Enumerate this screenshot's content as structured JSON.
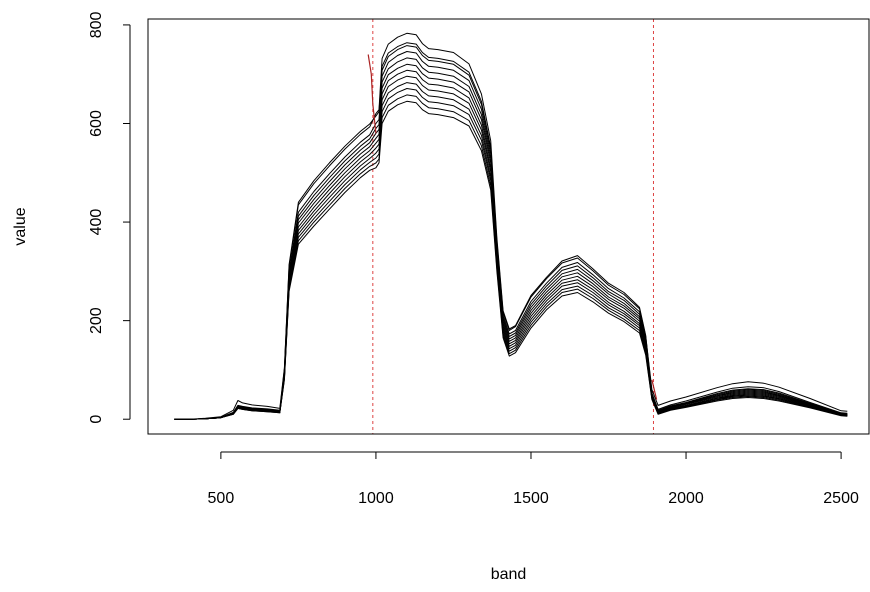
{
  "chart_data": {
    "type": "line",
    "title": "",
    "xlabel": "band",
    "ylabel": "value",
    "xlim": [
      265,
      2590
    ],
    "ylim": [
      -30,
      812
    ],
    "xticks": [
      500,
      1000,
      1500,
      2000,
      2500
    ],
    "yticks": [
      0,
      200,
      400,
      600,
      800
    ],
    "xtick_labels": [
      "500",
      "1000",
      "1500",
      "2000",
      "2500"
    ],
    "ytick_labels": [
      "0",
      "200",
      "400",
      "600",
      "800"
    ],
    "grid": false,
    "legend": "none",
    "colors": {
      "series": "#000000",
      "reference": "#dd4444",
      "highlight": "#aa2222"
    },
    "reference_lines_x": [
      990,
      1895
    ],
    "x": [
      350,
      400,
      450,
      500,
      540,
      555,
      570,
      600,
      650,
      690,
      705,
      720,
      750,
      800,
      850,
      900,
      950,
      980,
      1000,
      1010,
      1020,
      1040,
      1070,
      1100,
      1130,
      1150,
      1170,
      1200,
      1250,
      1300,
      1340,
      1370,
      1390,
      1410,
      1430,
      1450,
      1500,
      1550,
      1600,
      1650,
      1700,
      1750,
      1800,
      1850,
      1870,
      1890,
      1910,
      1950,
      2000,
      2100,
      2150,
      2200,
      2250,
      2300,
      2400,
      2500,
      2520
    ],
    "series": [
      {
        "values": [
          0,
          0,
          1,
          3,
          10,
          22,
          20,
          17,
          15,
          13,
          80,
          260,
          355,
          392,
          426,
          460,
          490,
          505,
          510,
          520,
          600,
          625,
          638,
          645,
          642,
          628,
          620,
          618,
          612,
          595,
          545,
          465,
          300,
          165,
          128,
          135,
          185,
          222,
          250,
          257,
          238,
          215,
          198,
          175,
          130,
          40,
          10,
          18,
          24,
          37,
          42,
          44,
          42,
          37,
          23,
          7,
          6
        ]
      },
      {
        "values": [
          0,
          0,
          1,
          3,
          10,
          22,
          20,
          17,
          15,
          13,
          82,
          264,
          362,
          400,
          434,
          468,
          498,
          513,
          520,
          528,
          612,
          637,
          650,
          658,
          655,
          641,
          632,
          630,
          624,
          606,
          555,
          474,
          306,
          170,
          133,
          140,
          191,
          228,
          257,
          264,
          245,
          221,
          203,
          180,
          134,
          42,
          11,
          19,
          25,
          39,
          44,
          46,
          44,
          39,
          24,
          8,
          7
        ]
      },
      {
        "values": [
          0,
          0,
          1,
          3,
          11,
          23,
          21,
          18,
          16,
          14,
          84,
          268,
          369,
          407,
          442,
          476,
          506,
          521,
          530,
          538,
          624,
          650,
          663,
          671,
          668,
          653,
          644,
          642,
          636,
          618,
          566,
          484,
          312,
          175,
          138,
          145,
          197,
          234,
          263,
          270,
          251,
          226,
          209,
          185,
          137,
          43,
          12,
          20,
          26,
          40,
          46,
          48,
          46,
          41,
          25,
          8,
          7
        ]
      },
      {
        "values": [
          0,
          0,
          1,
          3,
          11,
          23,
          21,
          18,
          16,
          14,
          86,
          272,
          376,
          415,
          450,
          484,
          514,
          529,
          540,
          548,
          636,
          662,
          675,
          683,
          680,
          665,
          656,
          654,
          648,
          629,
          576,
          492,
          318,
          180,
          143,
          150,
          203,
          240,
          270,
          277,
          257,
          232,
          214,
          190,
          141,
          44,
          12,
          21,
          27,
          42,
          47,
          50,
          48,
          42,
          26,
          9,
          8
        ]
      },
      {
        "values": [
          0,
          0,
          1,
          3,
          11,
          24,
          22,
          19,
          17,
          14,
          88,
          276,
          383,
          422,
          458,
          492,
          522,
          537,
          550,
          558,
          648,
          675,
          688,
          696,
          693,
          677,
          668,
          666,
          660,
          641,
          587,
          502,
          324,
          185,
          148,
          155,
          209,
          246,
          276,
          283,
          263,
          237,
          219,
          194,
          144,
          45,
          13,
          22,
          28,
          43,
          49,
          52,
          50,
          44,
          27,
          9,
          8
        ]
      },
      {
        "values": [
          0,
          0,
          1,
          3,
          12,
          24,
          22,
          19,
          17,
          15,
          90,
          280,
          390,
          430,
          466,
          500,
          530,
          545,
          560,
          568,
          660,
          687,
          700,
          708,
          705,
          689,
          680,
          678,
          672,
          652,
          597,
          510,
          330,
          190,
          153,
          160,
          215,
          252,
          282,
          290,
          269,
          243,
          225,
          199,
          148,
          46,
          14,
          23,
          30,
          45,
          51,
          54,
          52,
          46,
          28,
          10,
          9
        ]
      },
      {
        "values": [
          0,
          0,
          1,
          3,
          12,
          25,
          23,
          20,
          18,
          15,
          92,
          285,
          398,
          438,
          474,
          508,
          538,
          553,
          570,
          578,
          672,
          699,
          712,
          720,
          717,
          701,
          692,
          690,
          684,
          664,
          608,
          520,
          337,
          195,
          158,
          165,
          221,
          258,
          289,
          297,
          275,
          248,
          230,
          204,
          152,
          48,
          15,
          24,
          31,
          47,
          53,
          56,
          54,
          48,
          29,
          10,
          9
        ]
      },
      {
        "values": [
          0,
          0,
          1,
          3,
          12,
          25,
          23,
          20,
          18,
          16,
          94,
          290,
          405,
          446,
          482,
          516,
          546,
          561,
          580,
          588,
          684,
          711,
          725,
          733,
          730,
          713,
          704,
          702,
          696,
          675,
          618,
          529,
          343,
          200,
          163,
          170,
          227,
          264,
          295,
          304,
          281,
          254,
          235,
          208,
          155,
          49,
          16,
          25,
          32,
          48,
          55,
          58,
          56,
          49,
          30,
          11,
          10
        ]
      },
      {
        "values": [
          0,
          0,
          1,
          3,
          13,
          26,
          24,
          21,
          19,
          16,
          96,
          295,
          412,
          454,
          490,
          524,
          554,
          569,
          590,
          598,
          696,
          724,
          738,
          746,
          743,
          726,
          716,
          714,
          708,
          687,
          629,
          538,
          349,
          205,
          168,
          175,
          233,
          270,
          302,
          311,
          287,
          259,
          241,
          213,
          159,
          50,
          17,
          26,
          33,
          50,
          57,
          60,
          58,
          51,
          31,
          11,
          10
        ]
      },
      {
        "values": [
          0,
          0,
          1,
          4,
          13,
          27,
          25,
          22,
          20,
          17,
          98,
          300,
          420,
          462,
          498,
          532,
          562,
          577,
          600,
          608,
          708,
          736,
          750,
          758,
          755,
          738,
          728,
          726,
          720,
          698,
          639,
          547,
          355,
          210,
          173,
          180,
          239,
          276,
          308,
          318,
          293,
          265,
          246,
          218,
          163,
          51,
          18,
          27,
          34,
          52,
          59,
          62,
          60,
          53,
          32,
          12,
          11
        ]
      },
      {
        "values": [
          0,
          0,
          1,
          4,
          14,
          28,
          26,
          23,
          21,
          18,
          102,
          310,
          435,
          478,
          514,
          548,
          578,
          593,
          620,
          628,
          732,
          761,
          775,
          783,
          780,
          762,
          752,
          750,
          744,
          721,
          660,
          565,
          367,
          220,
          183,
          190,
          251,
          288,
          321,
          332,
          305,
          276,
          257,
          227,
          170,
          53,
          20,
          29,
          37,
          55,
          63,
          66,
          64,
          56,
          34,
          13,
          12
        ]
      },
      {
        "values": [
          0,
          0,
          2,
          5,
          18,
          38,
          33,
          29,
          26,
          22,
          104,
          314,
          440,
          484,
          520,
          554,
          584,
          599,
          615,
          624,
          716,
          743,
          756,
          764,
          761,
          744,
          734,
          732,
          726,
          704,
          645,
          552,
          360,
          216,
          180,
          188,
          248,
          285,
          317,
          327,
          301,
          272,
          253,
          224,
          168,
          60,
          28,
          37,
          45,
          64,
          72,
          76,
          73,
          65,
          42,
          17,
          16
        ]
      }
    ],
    "highlight_segments": [
      {
        "x": [
          975,
          985,
          990,
          1000
        ],
        "y": [
          740,
          700,
          640,
          580
        ]
      },
      {
        "x": [
          1890,
          1905
        ],
        "y": [
          80,
          40
        ]
      }
    ]
  }
}
